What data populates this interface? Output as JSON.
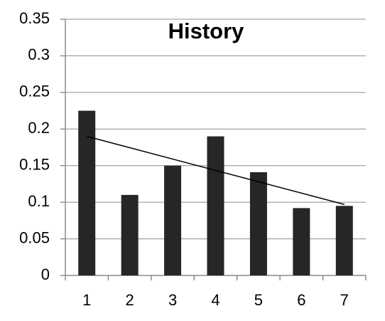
{
  "chart_data": {
    "type": "bar",
    "title": "History",
    "categories": [
      "1",
      "2",
      "3",
      "4",
      "5",
      "6",
      "7"
    ],
    "values": [
      0.225,
      0.11,
      0.15,
      0.19,
      0.141,
      0.092,
      0.095
    ],
    "color": "#262626",
    "trendline": {
      "values": [
        0.19,
        0.097
      ],
      "color": "#000000"
    },
    "ylim": [
      0,
      0.35
    ],
    "yticks": [
      0,
      0.05,
      0.1,
      0.15,
      0.2,
      0.25,
      0.3,
      0.35
    ],
    "grid": true
  }
}
